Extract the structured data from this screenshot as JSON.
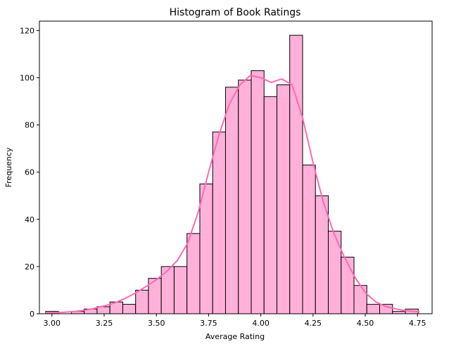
{
  "chart_data": {
    "type": "bar",
    "title": "Histogram of Book Ratings",
    "xlabel": "Average Rating",
    "ylabel": "Frequency",
    "xlim": [
      2.94,
      4.82
    ],
    "ylim": [
      0,
      124
    ],
    "xticks": [
      "3.00",
      "3.25",
      "3.50",
      "3.75",
      "4.00",
      "4.25",
      "4.50",
      "4.75"
    ],
    "yticks": [
      "0",
      "20",
      "40",
      "60",
      "80",
      "100",
      "120"
    ],
    "bin_start": 2.97,
    "bin_width": 0.0615,
    "values": [
      1,
      0,
      1,
      2,
      3,
      5,
      4,
      10,
      15,
      20,
      20,
      34,
      55,
      77,
      96,
      99,
      103,
      92,
      97,
      118,
      63,
      50,
      35,
      24,
      12,
      4,
      4,
      1,
      2
    ],
    "bar_color": "#ffb1d9",
    "edge_color": "#000000",
    "kde": {
      "color": "#ff69b4",
      "x": [
        2.97,
        3.05,
        3.1,
        3.15,
        3.2,
        3.25,
        3.3,
        3.35,
        3.4,
        3.45,
        3.5,
        3.55,
        3.6,
        3.65,
        3.7,
        3.75,
        3.8,
        3.85,
        3.9,
        3.95,
        4.0,
        4.05,
        4.1,
        4.15,
        4.2,
        4.25,
        4.3,
        4.35,
        4.4,
        4.45,
        4.5,
        4.55,
        4.6,
        4.65,
        4.7,
        4.76
      ],
      "y": [
        0.3,
        0.6,
        0.9,
        1.4,
        2.2,
        3.3,
        4.6,
        6.5,
        8.8,
        11.5,
        14.5,
        18,
        22.5,
        30,
        43,
        60,
        76,
        89,
        97,
        101,
        100,
        98,
        99.5,
        97,
        83,
        64,
        47,
        34,
        24,
        15.5,
        9,
        5,
        3,
        2,
        1.2,
        0.8
      ]
    }
  }
}
